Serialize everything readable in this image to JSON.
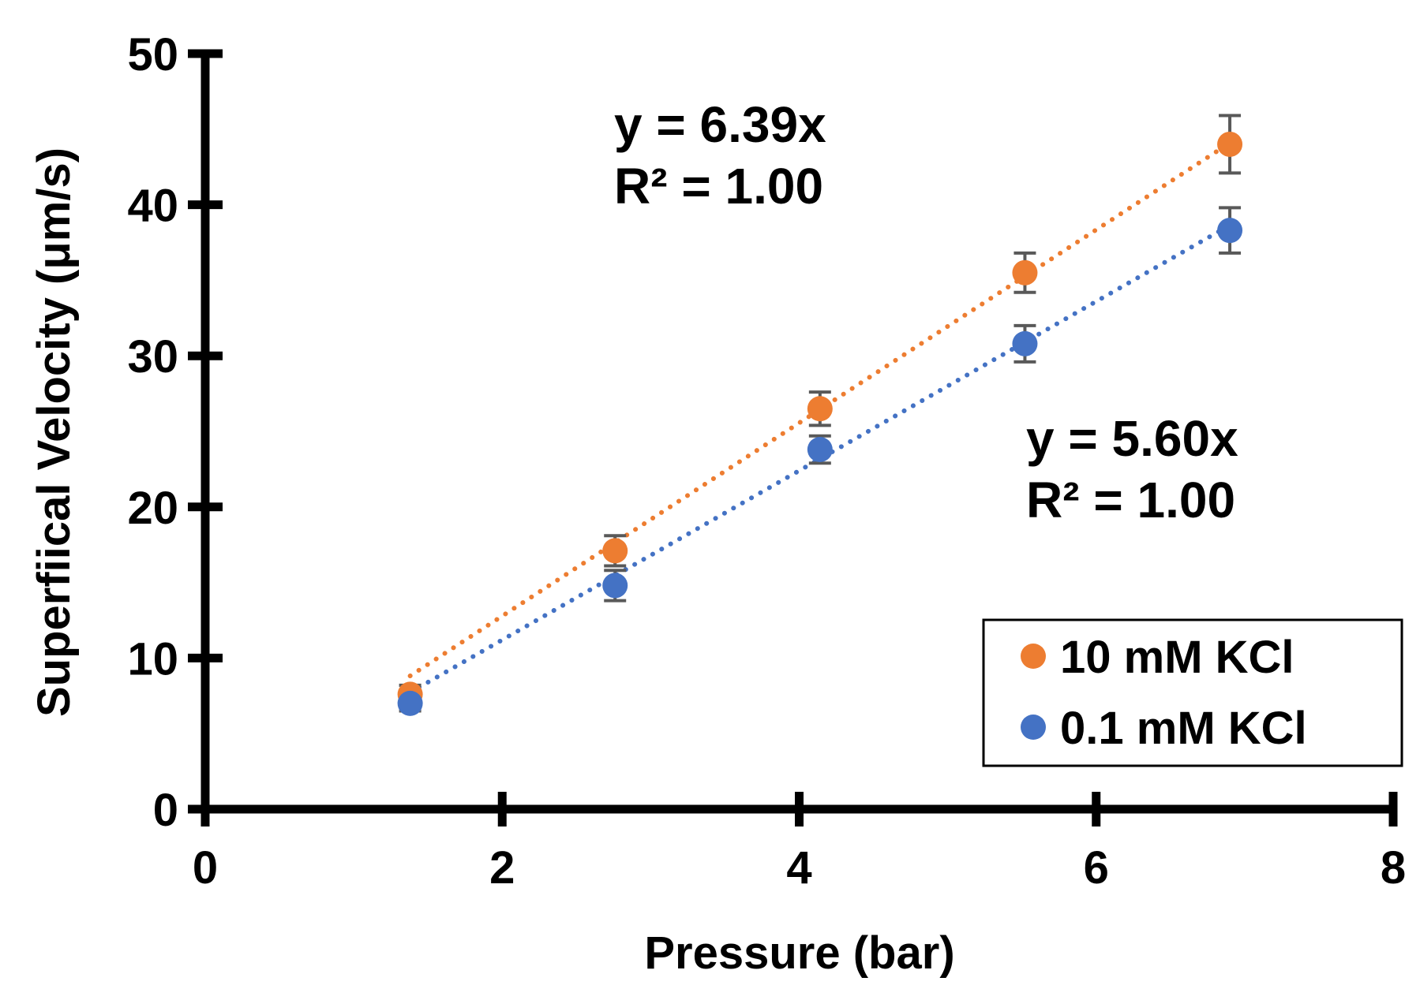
{
  "chart_data": {
    "type": "scatter",
    "title": "",
    "xlabel": "Pressure (bar)",
    "ylabel": "Superfiical Velocity (μm/s)",
    "xlim": [
      0,
      8
    ],
    "ylim": [
      0,
      50
    ],
    "xticks": [
      0,
      2,
      4,
      6,
      8
    ],
    "yticks": [
      0,
      10,
      20,
      30,
      40,
      50
    ],
    "xtick_labels": [
      "0",
      "2",
      "4",
      "6",
      "8"
    ],
    "ytick_labels": [
      "0",
      "10",
      "20",
      "30",
      "40",
      "50"
    ],
    "grid": false,
    "legend_position": "bottom-right",
    "series": [
      {
        "name": "10 mM KCl",
        "color": "#ED7D31",
        "x": [
          1.38,
          2.76,
          4.14,
          5.52,
          6.9
        ],
        "y": [
          7.6,
          17.1,
          26.5,
          35.5,
          44.0
        ],
        "error": [
          0.6,
          1.0,
          1.1,
          1.3,
          1.9
        ],
        "trendline": {
          "slope": 6.39,
          "x_range": [
            1.38,
            6.9
          ],
          "style": "dotted"
        },
        "annotation": {
          "equation": "y = 6.39x",
          "r2": "R² = 1.00"
        }
      },
      {
        "name": "0.1 mM KCl",
        "color": "#4472C4",
        "x": [
          1.38,
          2.76,
          4.14,
          5.52,
          6.9
        ],
        "y": [
          7.0,
          14.8,
          23.8,
          30.8,
          38.3
        ],
        "error": [
          0.5,
          1.0,
          0.9,
          1.2,
          1.5
        ],
        "trendline": {
          "slope": 5.6,
          "x_range": [
            1.38,
            6.9
          ],
          "style": "dotted"
        },
        "annotation": {
          "equation": "y = 5.60x",
          "r2": "R² = 1.00"
        }
      }
    ],
    "errorbar_color": "#595959"
  }
}
